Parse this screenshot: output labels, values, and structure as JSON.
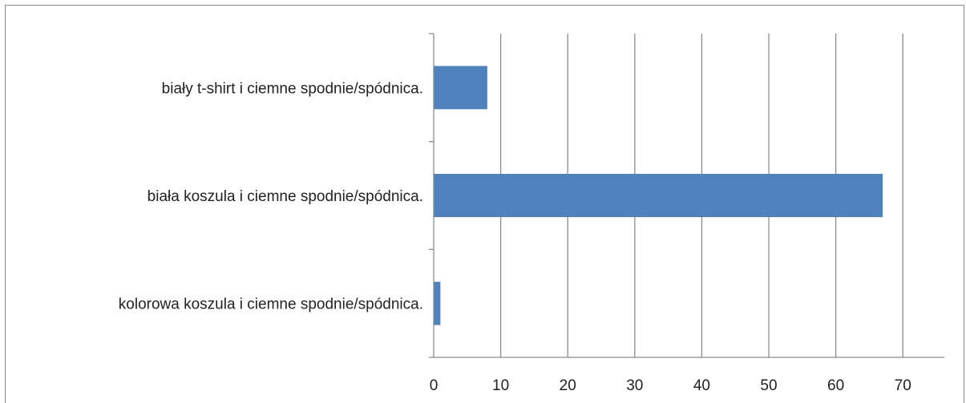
{
  "chart_data": {
    "type": "bar",
    "orientation": "horizontal",
    "categories": [
      "biały t-shirt i ciemne spodnie/spódnica.",
      "biała koszula i ciemne spodnie/spódnica.",
      "kolorowa koszula i ciemne spodnie/spódnica."
    ],
    "values": [
      8,
      67,
      1
    ],
    "xlim": [
      0,
      75
    ],
    "x_ticks": [
      0,
      10,
      20,
      30,
      40,
      50,
      60,
      70
    ],
    "grid": "vertical",
    "legend": "none",
    "bar_color": "#4f81bd",
    "grid_color": "#8c8c8c"
  }
}
